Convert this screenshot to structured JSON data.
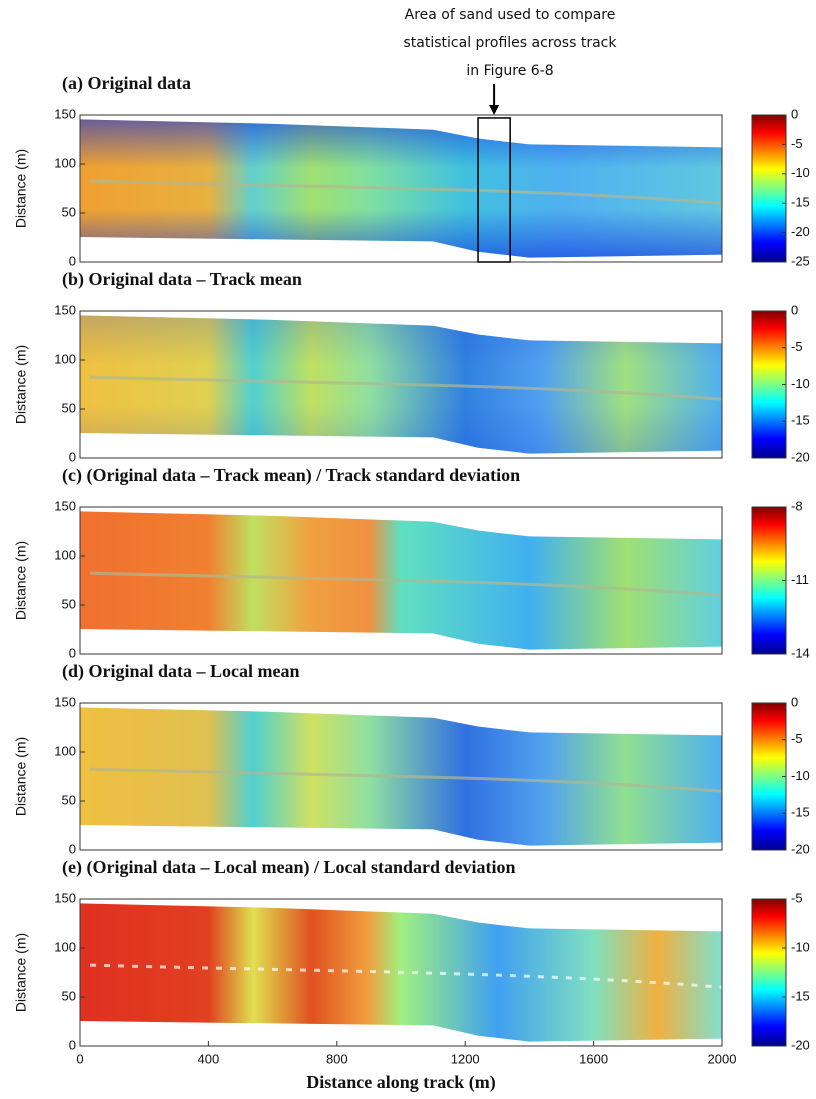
{
  "chart_data": [
    {
      "type": "heatmap",
      "title": "(a) Original data",
      "ylabel": "Distance (m)",
      "xlim": [
        0,
        2000
      ],
      "ylim": [
        0,
        150
      ],
      "yticks": [
        0,
        50,
        100,
        150
      ],
      "clim": [
        -25,
        0
      ],
      "cticks": [
        0,
        -5,
        -10,
        -15,
        -20,
        -25
      ],
      "annotation": {
        "text": [
          "Area of sand used to compare",
          "statistical profiles across track",
          "in Figure 6-8"
        ],
        "x": [
          1240,
          1340
        ],
        "y": [
          0,
          147
        ]
      }
    },
    {
      "type": "heatmap",
      "title": "(b) Original data – Track mean",
      "ylabel": "Distance (m)",
      "xlim": [
        0,
        2000
      ],
      "ylim": [
        0,
        150
      ],
      "yticks": [
        0,
        50,
        100,
        150
      ],
      "clim": [
        -20,
        0
      ],
      "cticks": [
        0,
        -5,
        -10,
        -15,
        -20
      ]
    },
    {
      "type": "heatmap",
      "title": "(c) (Original data – Track mean) / Track standard deviation",
      "ylabel": "Distance (m)",
      "xlim": [
        0,
        2000
      ],
      "ylim": [
        0,
        150
      ],
      "yticks": [
        0,
        50,
        100,
        150
      ],
      "clim": [
        -14,
        -8
      ],
      "cticks": [
        -8,
        -11,
        -14
      ]
    },
    {
      "type": "heatmap",
      "title": "(d) Original data – Local mean",
      "ylabel": "Distance (m)",
      "xlim": [
        0,
        2000
      ],
      "ylim": [
        0,
        150
      ],
      "yticks": [
        0,
        50,
        100,
        150
      ],
      "clim": [
        -20,
        0
      ],
      "cticks": [
        0,
        -5,
        -10,
        -15,
        -20
      ]
    },
    {
      "type": "heatmap",
      "title": "(e) (Original data – Local mean) / Local standard deviation",
      "ylabel": "Distance (m)",
      "xlabel": "Distance along track (m)",
      "xlim": [
        0,
        2000
      ],
      "ylim": [
        0,
        150
      ],
      "yticks": [
        0,
        50,
        100,
        150
      ],
      "xticks": [
        0,
        400,
        800,
        1200,
        1600,
        2000
      ],
      "clim": [
        -20,
        -5
      ],
      "cticks": [
        -5,
        -10,
        -15,
        -20
      ]
    }
  ]
}
